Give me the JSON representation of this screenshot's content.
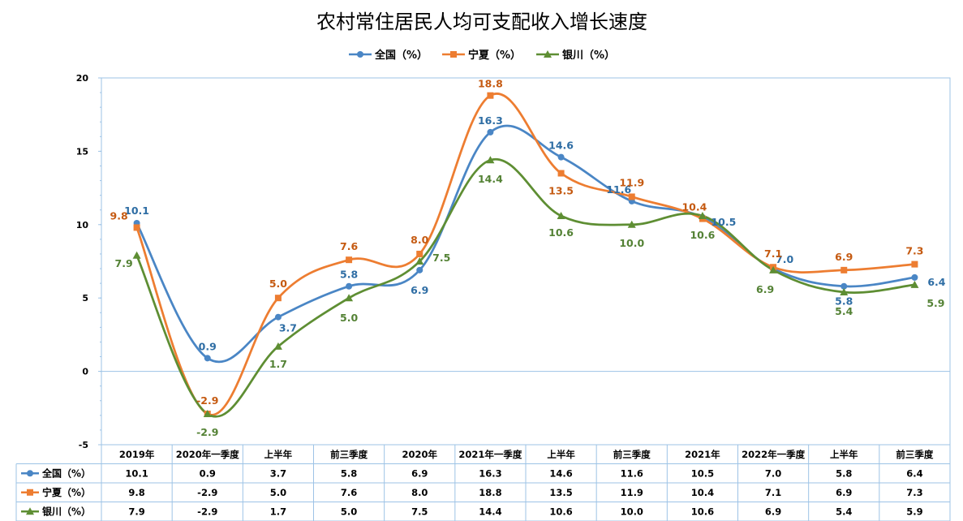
{
  "chart_data": {
    "type": "line",
    "title": "农村常住居民人均可支配收入增长速度",
    "categories": [
      "2019年",
      "2020年一季度",
      "上半年",
      "前三季度",
      "2020年",
      "2021年一季度",
      "上半年",
      "前三季度",
      "2021年",
      "2022年一季度",
      "上半年",
      "前三季度"
    ],
    "ylim": [
      -5,
      20
    ],
    "yticks": [
      "-5",
      "0",
      "5",
      "10",
      "15",
      "20"
    ],
    "grid": false,
    "legend_position": "top",
    "data_table": true,
    "series": [
      {
        "name": "全国（%）",
        "color": "#4A86C5",
        "marker": "circle",
        "values": [
          10.1,
          0.9,
          3.7,
          5.8,
          6.9,
          16.3,
          14.6,
          11.6,
          10.5,
          7.0,
          5.8,
          6.4
        ],
        "labels": [
          "10.1",
          "0.9",
          "3.7",
          "5.8",
          "6.9",
          "16.3",
          "14.6",
          "11.6",
          "10.5",
          "7.0",
          "5.8",
          "6.4"
        ],
        "label_color": "#2E6DA4"
      },
      {
        "name": "宁夏（%）",
        "color": "#ED7D31",
        "marker": "square",
        "values": [
          9.8,
          -2.9,
          5.0,
          7.6,
          8.0,
          18.8,
          13.5,
          11.9,
          10.4,
          7.1,
          6.9,
          7.3
        ],
        "labels": [
          "9.8",
          "-2.9",
          "5.0",
          "7.6",
          "8.0",
          "18.8",
          "13.5",
          "11.9",
          "10.4",
          "7.1",
          "6.9",
          "7.3"
        ],
        "label_color": "#C55A11"
      },
      {
        "name": "银川（%）",
        "color": "#5E8E33",
        "marker": "triangle",
        "values": [
          7.9,
          -2.9,
          1.7,
          5.0,
          7.5,
          14.4,
          10.6,
          10.0,
          10.6,
          6.9,
          5.4,
          5.9
        ],
        "labels": [
          "7.9",
          "-2.9",
          "1.7",
          "5.0",
          "7.5",
          "14.4",
          "10.6",
          "10.0",
          "10.6",
          "6.9",
          "5.4",
          "5.9"
        ],
        "label_color": "#548235"
      }
    ]
  }
}
